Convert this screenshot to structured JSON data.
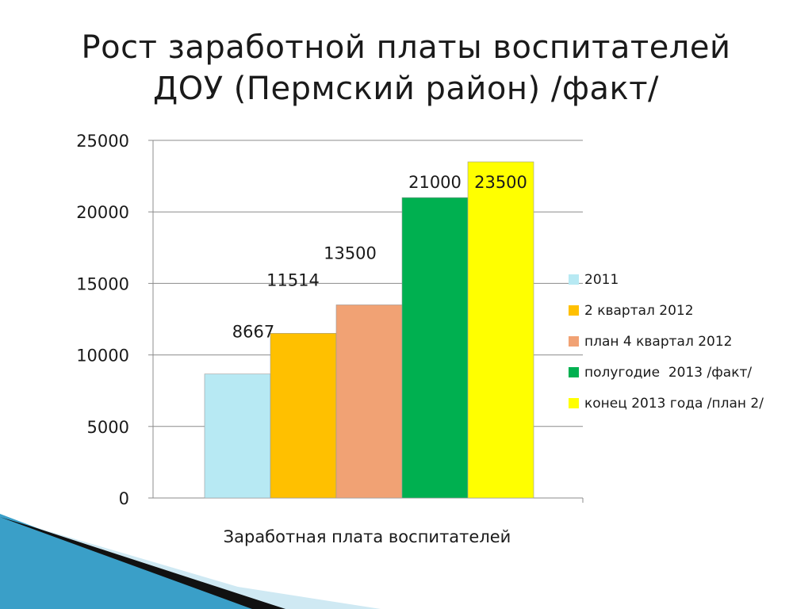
{
  "slide": {
    "title_line1": "Рост заработной платы воспитателей",
    "title_line2": "ДОУ (Пермский район) /факт/"
  },
  "chart_data": {
    "type": "bar",
    "title": "",
    "xlabel": "Заработная плата воспитателей",
    "ylabel": "",
    "ylim": [
      0,
      25000
    ],
    "yticks": [
      0,
      5000,
      10000,
      15000,
      20000,
      25000
    ],
    "grid": true,
    "legend_position": "right",
    "categories": [
      "Заработная плата воспитателей"
    ],
    "series": [
      {
        "name": "2011",
        "values": [
          8667
        ],
        "label": "8667",
        "color": "#b7e9f3"
      },
      {
        "name": "2 квартал 2012",
        "values": [
          11514
        ],
        "label": "11514",
        "color": "#ffc000"
      },
      {
        "name": "план 4 квартал 2012",
        "values": [
          13500
        ],
        "label": "13500",
        "color": "#f1a274"
      },
      {
        "name": "полугодие  2013 /факт/",
        "values": [
          21000
        ],
        "label": "21000",
        "color": "#00b050"
      },
      {
        "name": "конец 2013 года /план 2/",
        "values": [
          23500
        ],
        "label": "23500",
        "color": "#ffff00"
      }
    ]
  },
  "decor": {
    "band_dark": "#111111",
    "band_blue": "#3a9fc8",
    "band_light": "#cfe9f3"
  }
}
